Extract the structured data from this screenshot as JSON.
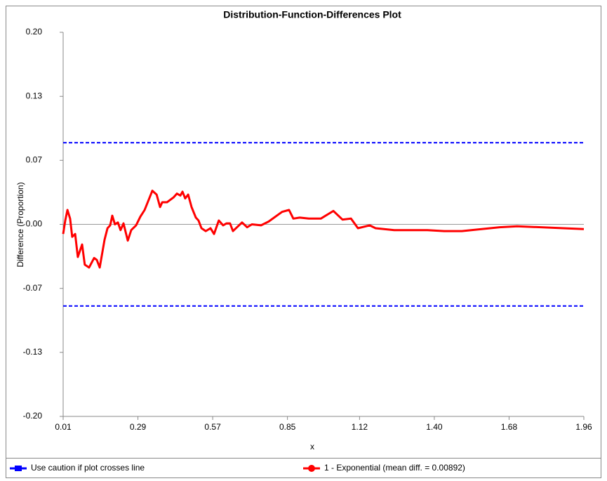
{
  "chart_data": {
    "type": "line",
    "title": "Distribution-Function-Differences Plot",
    "x_label": "x",
    "y_label": "Difference (Proportion)",
    "xlim": [
      0.01,
      1.96
    ],
    "xticks": [
      0.01,
      0.29,
      0.57,
      0.85,
      1.12,
      {
        "value": 1.4,
        "label": "1.40"
      },
      1.68,
      1.96
    ],
    "ylim": [
      -0.2,
      0.2
    ],
    "yticks": [
      {
        "value": -0.2,
        "label": "-0.20"
      },
      {
        "value": -0.1333,
        "label": "-0.13"
      },
      {
        "value": -0.0667,
        "label": "-0.07"
      },
      {
        "value": 0,
        "label": "0.00"
      },
      {
        "value": 0.0667,
        "label": "0.07"
      },
      {
        "value": 0.1333,
        "label": "0.13"
      },
      {
        "value": 0.2,
        "label": "0.20"
      }
    ],
    "series": [
      {
        "name": "Use caution if plot crosses line",
        "color": "#0000ff",
        "dashed": true,
        "upper": 0.085,
        "lower": -0.085
      },
      {
        "name": "1 - Exponential (mean diff. = 0.00892)",
        "color": "#ff0000",
        "x": [
          0.01,
          0.018,
          0.026,
          0.036,
          0.044,
          0.055,
          0.065,
          0.081,
          0.091,
          0.107,
          0.126,
          0.136,
          0.147,
          0.165,
          0.176,
          0.186,
          0.194,
          0.204,
          0.215,
          0.225,
          0.236,
          0.252,
          0.265,
          0.283,
          0.299,
          0.315,
          0.344,
          0.36,
          0.373,
          0.381,
          0.399,
          0.423,
          0.436,
          0.449,
          0.457,
          0.467,
          0.478,
          0.491,
          0.507,
          0.517,
          0.528,
          0.544,
          0.562,
          0.575,
          0.593,
          0.609,
          0.622,
          0.635,
          0.646,
          0.68,
          0.699,
          0.717,
          0.751,
          0.78,
          0.83,
          0.856,
          0.872,
          0.896,
          0.93,
          0.975,
          1.022,
          1.056,
          1.088,
          1.114,
          1.158,
          1.18,
          1.25,
          1.374,
          1.437,
          1.503,
          1.645,
          1.71,
          1.96
        ],
        "values": [
          -0.01,
          0.004,
          0.015,
          0.006,
          -0.013,
          -0.01,
          -0.034,
          -0.021,
          -0.042,
          -0.045,
          -0.035,
          -0.037,
          -0.045,
          -0.016,
          -0.004,
          -0.001,
          0.009,
          0,
          0.002,
          -0.006,
          0.001,
          -0.017,
          -0.006,
          -0.001,
          0.008,
          0.015,
          0.035,
          0.031,
          0.018,
          0.023,
          0.023,
          0.028,
          0.032,
          0.03,
          0.034,
          0.027,
          0.031,
          0.018,
          0.007,
          0.004,
          -0.004,
          -0.007,
          -0.004,
          -0.01,
          0.004,
          -0.001,
          0.001,
          0.001,
          -0.007,
          0.002,
          -0.003,
          0,
          -0.001,
          0.003,
          0.013,
          0.015,
          0.006,
          0.007,
          0.006,
          0.006,
          0.014,
          0.005,
          0.006,
          -0.004,
          -0.001,
          -0.004,
          -0.006,
          -0.006,
          -0.007,
          -0.007,
          -0.003,
          -0.002,
          -0.005
        ]
      }
    ]
  }
}
